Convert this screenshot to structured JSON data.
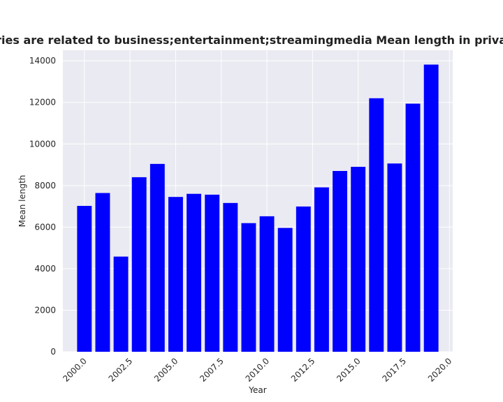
{
  "chart_data": {
    "type": "bar",
    "title": "Categories are related to business;entertainment;streamingmedia Mean length in privacy policies",
    "xlabel": "Year",
    "ylabel": "Mean length",
    "x": [
      2000,
      2001,
      2002,
      2003,
      2004,
      2005,
      2006,
      2007,
      2008,
      2009,
      2010,
      2011,
      2012,
      2013,
      2014,
      2015,
      2016,
      2017,
      2018,
      2019
    ],
    "values": [
      7020,
      7640,
      4580,
      8400,
      9040,
      7450,
      7600,
      7560,
      7160,
      6190,
      6520,
      5960,
      6990,
      7910,
      8700,
      8900,
      12200,
      9060,
      11940,
      13820
    ],
    "xticks": [
      "2000.0",
      "2002.5",
      "2005.0",
      "2007.5",
      "2010.0",
      "2012.5",
      "2015.0",
      "2017.5",
      "2020.0"
    ],
    "yticks": [
      "0",
      "2000",
      "4000",
      "6000",
      "8000",
      "10000",
      "12000",
      "14000"
    ],
    "xlim": [
      1998.82,
      2020.18
    ],
    "ylim": [
      0,
      14510
    ],
    "bar_color": "#0000ff",
    "background_color": "#eaeaf2",
    "grid": true,
    "grid_color": "#ffffff",
    "legend": "none"
  }
}
